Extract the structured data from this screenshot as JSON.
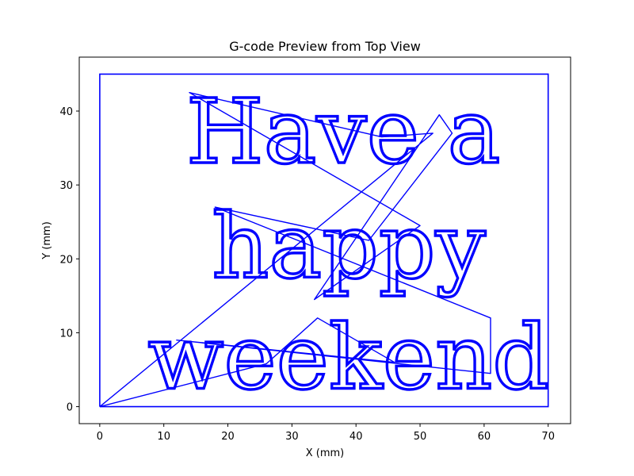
{
  "chart_data": {
    "type": "line",
    "title": "G-code Preview from Top View",
    "xlabel": "X (mm)",
    "ylabel": "Y (mm)",
    "xlim": [
      -3.2,
      73.5
    ],
    "ylim": [
      -2.3,
      47.3
    ],
    "x_ticks": [
      0,
      10,
      20,
      30,
      40,
      50,
      60,
      70
    ],
    "y_ticks": [
      0,
      10,
      20,
      30,
      40
    ],
    "grid": false,
    "line_color": "#0000ff",
    "border_path": [
      [
        0,
        0
      ],
      [
        0,
        45
      ],
      [
        70,
        45
      ],
      [
        70,
        0
      ],
      [
        0,
        0
      ]
    ],
    "travel_path": [
      [
        0,
        0
      ],
      [
        52,
        37
      ],
      [
        44,
        36.5
      ],
      [
        14,
        42.5
      ],
      [
        50,
        24.5
      ],
      [
        33.5,
        14.5
      ],
      [
        53,
        39.5
      ],
      [
        55,
        37
      ],
      [
        42,
        22.5
      ],
      [
        18,
        27
      ],
      [
        61,
        12
      ],
      [
        61,
        4.5
      ],
      [
        12,
        9
      ],
      [
        46,
        6
      ],
      [
        34,
        12
      ],
      [
        26,
        5.8
      ],
      [
        0,
        0
      ]
    ],
    "text_lines": [
      {
        "text": "Have a",
        "x": 13.5,
        "y": 33
      },
      {
        "text": "happy",
        "x": 17.5,
        "y": 17.5
      },
      {
        "text": "weekend",
        "x": 7.5,
        "y": 2.5
      }
    ]
  }
}
